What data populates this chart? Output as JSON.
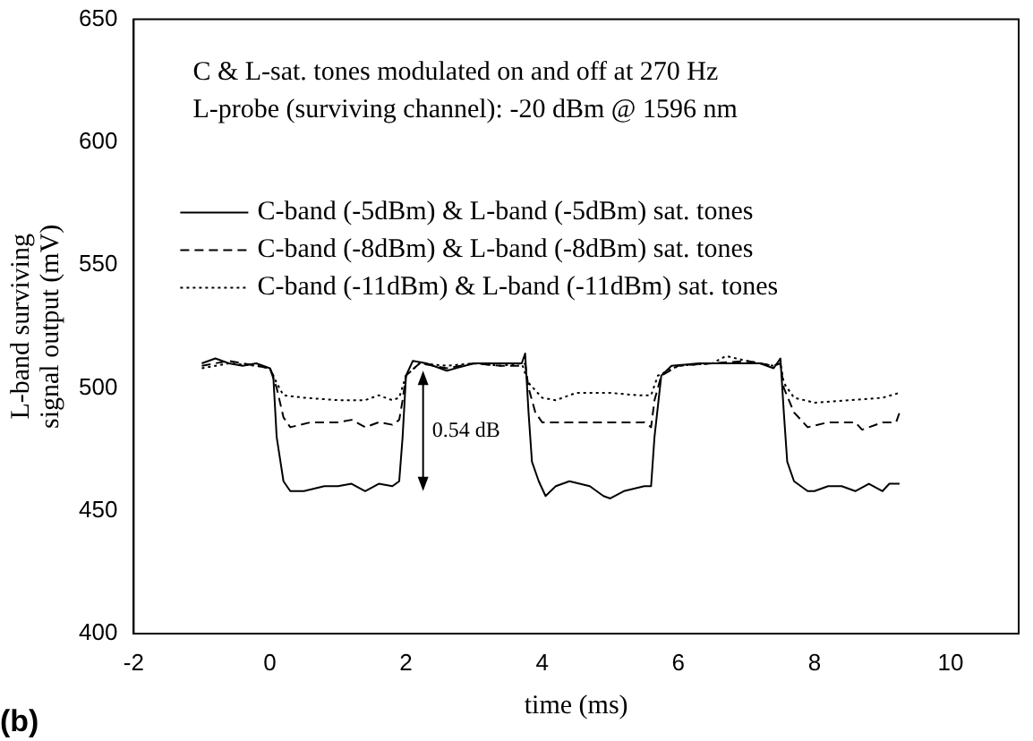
{
  "chart_data": {
    "type": "line",
    "title": "(b)",
    "xlabel": "time (ms)",
    "ylabel": "L-band surviving signal output (mV)",
    "xlim": [
      -2,
      11
    ],
    "xticks": [
      -2,
      0,
      2,
      4,
      6,
      8,
      10
    ],
    "ylim": [
      400,
      650
    ],
    "yticks": [
      400,
      450,
      500,
      550,
      600,
      650
    ],
    "grid": false,
    "legend": "top left",
    "marker": "none",
    "annotations": [
      "C & L-sat. tones modulated on and off at 270 Hz",
      "L-probe (surviving channel): -20 dBm @ 1596 nm",
      "0.54 dB"
    ],
    "series": [
      {
        "name": "C-band (-5dBm) & L-band (-5dBm) sat. tones",
        "color": "#000000",
        "line_style": "solid",
        "x": [
          -1,
          -0.8,
          -0.6,
          -0.4,
          -0.2,
          0,
          0.05,
          0.1,
          0.2,
          0.3,
          0.5,
          0.8,
          1,
          1.2,
          1.4,
          1.6,
          1.8,
          1.9,
          1.95,
          2,
          2.1,
          2.3,
          2.6,
          3,
          3.4,
          3.7,
          3.75,
          3.8,
          3.85,
          3.95,
          4.05,
          4.2,
          4.4,
          4.7,
          4.9,
          5,
          5.2,
          5.5,
          5.6,
          5.65,
          5.75,
          5.9,
          6.3,
          6.8,
          7.2,
          7.4,
          7.5,
          7.55,
          7.6,
          7.7,
          7.9,
          8,
          8.2,
          8.4,
          8.6,
          8.8,
          9,
          9.1,
          9.25
        ],
        "values": [
          510,
          512,
          510,
          509,
          510,
          508,
          505,
          480,
          462,
          458,
          458,
          460,
          460,
          461,
          458,
          461,
          460,
          462,
          480,
          505,
          511,
          510,
          507,
          510,
          510,
          510,
          514,
          490,
          470,
          462,
          456,
          460,
          462,
          460,
          456,
          455,
          458,
          460,
          460,
          480,
          505,
          509,
          510,
          510,
          510,
          508,
          512,
          490,
          470,
          462,
          458,
          458,
          460,
          460,
          458,
          461,
          458,
          461,
          461
        ]
      },
      {
        "name": "C-band (-8dBm) & L-band (-8dBm) sat. tones",
        "color": "#000000",
        "line_style": "dashed",
        "x": [
          -1,
          -0.6,
          -0.2,
          0,
          0.1,
          0.2,
          0.3,
          0.6,
          1,
          1.2,
          1.4,
          1.6,
          1.8,
          1.9,
          1.95,
          2,
          2.2,
          2.6,
          3,
          3.4,
          3.7,
          3.75,
          3.8,
          3.9,
          4,
          4.5,
          5,
          5.5,
          5.6,
          5.65,
          5.75,
          6,
          6.5,
          7,
          7.4,
          7.5,
          7.55,
          7.7,
          7.9,
          8.2,
          8.6,
          8.7,
          9,
          9.2,
          9.25
        ],
        "values": [
          509,
          511,
          509,
          508,
          500,
          488,
          484,
          486,
          486,
          487,
          484,
          486,
          485,
          487,
          495,
          505,
          510,
          508,
          510,
          509,
          509,
          510,
          500,
          490,
          486,
          486,
          486,
          486,
          484,
          495,
          505,
          509,
          510,
          511,
          509,
          510,
          500,
          490,
          484,
          486,
          486,
          483,
          486,
          486,
          490
        ]
      },
      {
        "name": "C-band (-11dBm) & L-band (-11dBm) sat. tones",
        "color": "#000000",
        "line_style": "dotted",
        "x": [
          -1,
          -0.6,
          -0.2,
          0,
          0.1,
          0.2,
          0.5,
          1,
          1.4,
          1.6,
          1.8,
          1.9,
          2,
          2.2,
          2.6,
          3,
          3.4,
          3.7,
          3.8,
          4,
          4.2,
          4.5,
          5,
          5.4,
          5.6,
          5.7,
          6,
          6.5,
          6.7,
          7,
          7.4,
          7.5,
          7.55,
          7.7,
          8,
          8.5,
          9,
          9.25
        ],
        "values": [
          508,
          510,
          509,
          508,
          502,
          497,
          496,
          495,
          495,
          497,
          495,
          496,
          505,
          510,
          509,
          510,
          509,
          510,
          502,
          496,
          495,
          498,
          498,
          497,
          497,
          505,
          509,
          510,
          513,
          511,
          509,
          510,
          502,
          496,
          494,
          495,
          496,
          498
        ]
      }
    ]
  }
}
